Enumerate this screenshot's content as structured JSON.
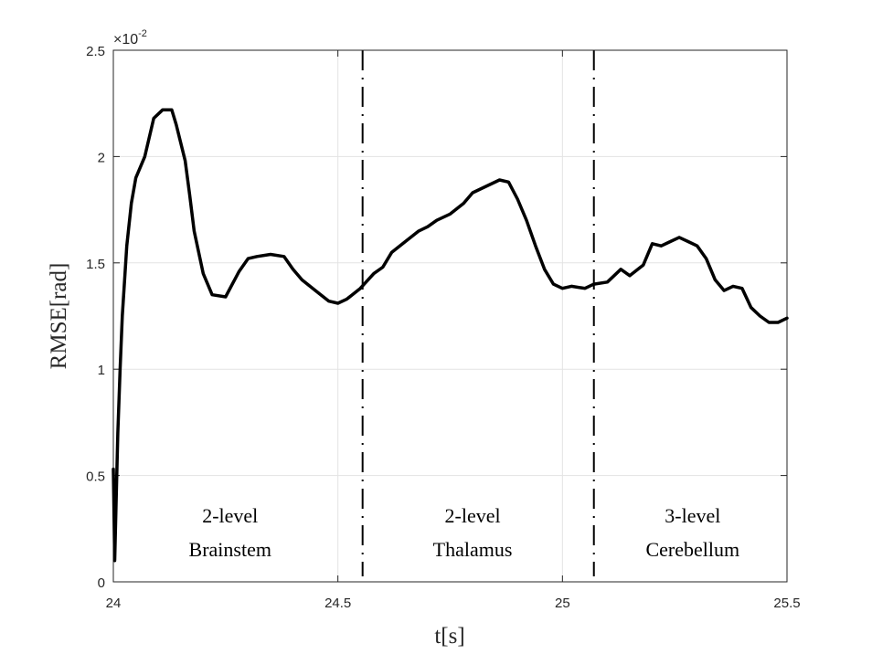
{
  "chart_data": {
    "type": "line",
    "xlabel": "t[s]",
    "ylabel": "RMSE[rad]",
    "xlim": [
      24,
      25.5
    ],
    "ylim": [
      0,
      2.5
    ],
    "x_ticks": [
      "24",
      "24.5",
      "25",
      "25.5"
    ],
    "y_ticks": [
      "0",
      "0.5",
      "1",
      "1.5",
      "2",
      "2.5"
    ],
    "y_multiplier_base": "×10",
    "y_multiplier_exp": "-2",
    "grid": true,
    "colors": {
      "line": "#000000",
      "grid": "#e3e3e3",
      "axis": "#262626"
    },
    "series": [
      {
        "x": [
          24.0,
          24.003,
          24.006,
          24.01,
          24.015,
          24.02,
          24.03,
          24.04,
          24.05,
          24.07,
          24.09,
          24.11,
          24.13,
          24.14,
          24.16,
          24.17,
          24.18,
          24.2,
          24.22,
          24.25,
          24.28,
          24.3,
          24.32,
          24.35,
          24.38,
          24.4,
          24.42,
          24.45,
          24.48,
          24.5,
          24.52,
          24.55,
          24.58,
          24.6,
          24.62,
          24.65,
          24.68,
          24.7,
          24.72,
          24.75,
          24.78,
          24.8,
          24.83,
          24.86,
          24.88,
          24.9,
          24.92,
          24.94,
          24.96,
          24.98,
          25.0,
          25.02,
          25.05,
          25.07,
          25.1,
          25.13,
          25.15,
          25.18,
          25.2,
          25.22,
          25.24,
          25.26,
          25.28,
          25.3,
          25.32,
          25.34,
          25.36,
          25.38,
          25.4,
          25.42,
          25.44,
          25.46,
          25.48,
          25.5
        ],
        "y": [
          0.53,
          0.1,
          0.35,
          0.7,
          1.0,
          1.25,
          1.58,
          1.78,
          1.9,
          2.0,
          2.18,
          2.22,
          2.22,
          2.15,
          1.98,
          1.82,
          1.65,
          1.45,
          1.35,
          1.34,
          1.46,
          1.52,
          1.53,
          1.54,
          1.53,
          1.47,
          1.42,
          1.37,
          1.32,
          1.31,
          1.33,
          1.38,
          1.45,
          1.48,
          1.55,
          1.6,
          1.65,
          1.67,
          1.7,
          1.73,
          1.78,
          1.83,
          1.86,
          1.89,
          1.88,
          1.8,
          1.7,
          1.58,
          1.47,
          1.4,
          1.38,
          1.39,
          1.38,
          1.4,
          1.41,
          1.47,
          1.44,
          1.49,
          1.59,
          1.58,
          1.6,
          1.62,
          1.6,
          1.58,
          1.52,
          1.42,
          1.37,
          1.39,
          1.38,
          1.29,
          1.25,
          1.22,
          1.22,
          1.24
        ]
      }
    ],
    "vlines": [
      {
        "x": 24.555,
        "style": "dashed"
      },
      {
        "x": 25.07,
        "style": "dashed"
      }
    ],
    "annotations": [
      {
        "line1": "2-level",
        "line2": "Brainstem",
        "x": 24.26
      },
      {
        "line1": "2-level",
        "line2": "Thalamus",
        "x": 24.8
      },
      {
        "line1": "3-level",
        "line2": "Cerebellum",
        "x": 25.29
      }
    ]
  }
}
